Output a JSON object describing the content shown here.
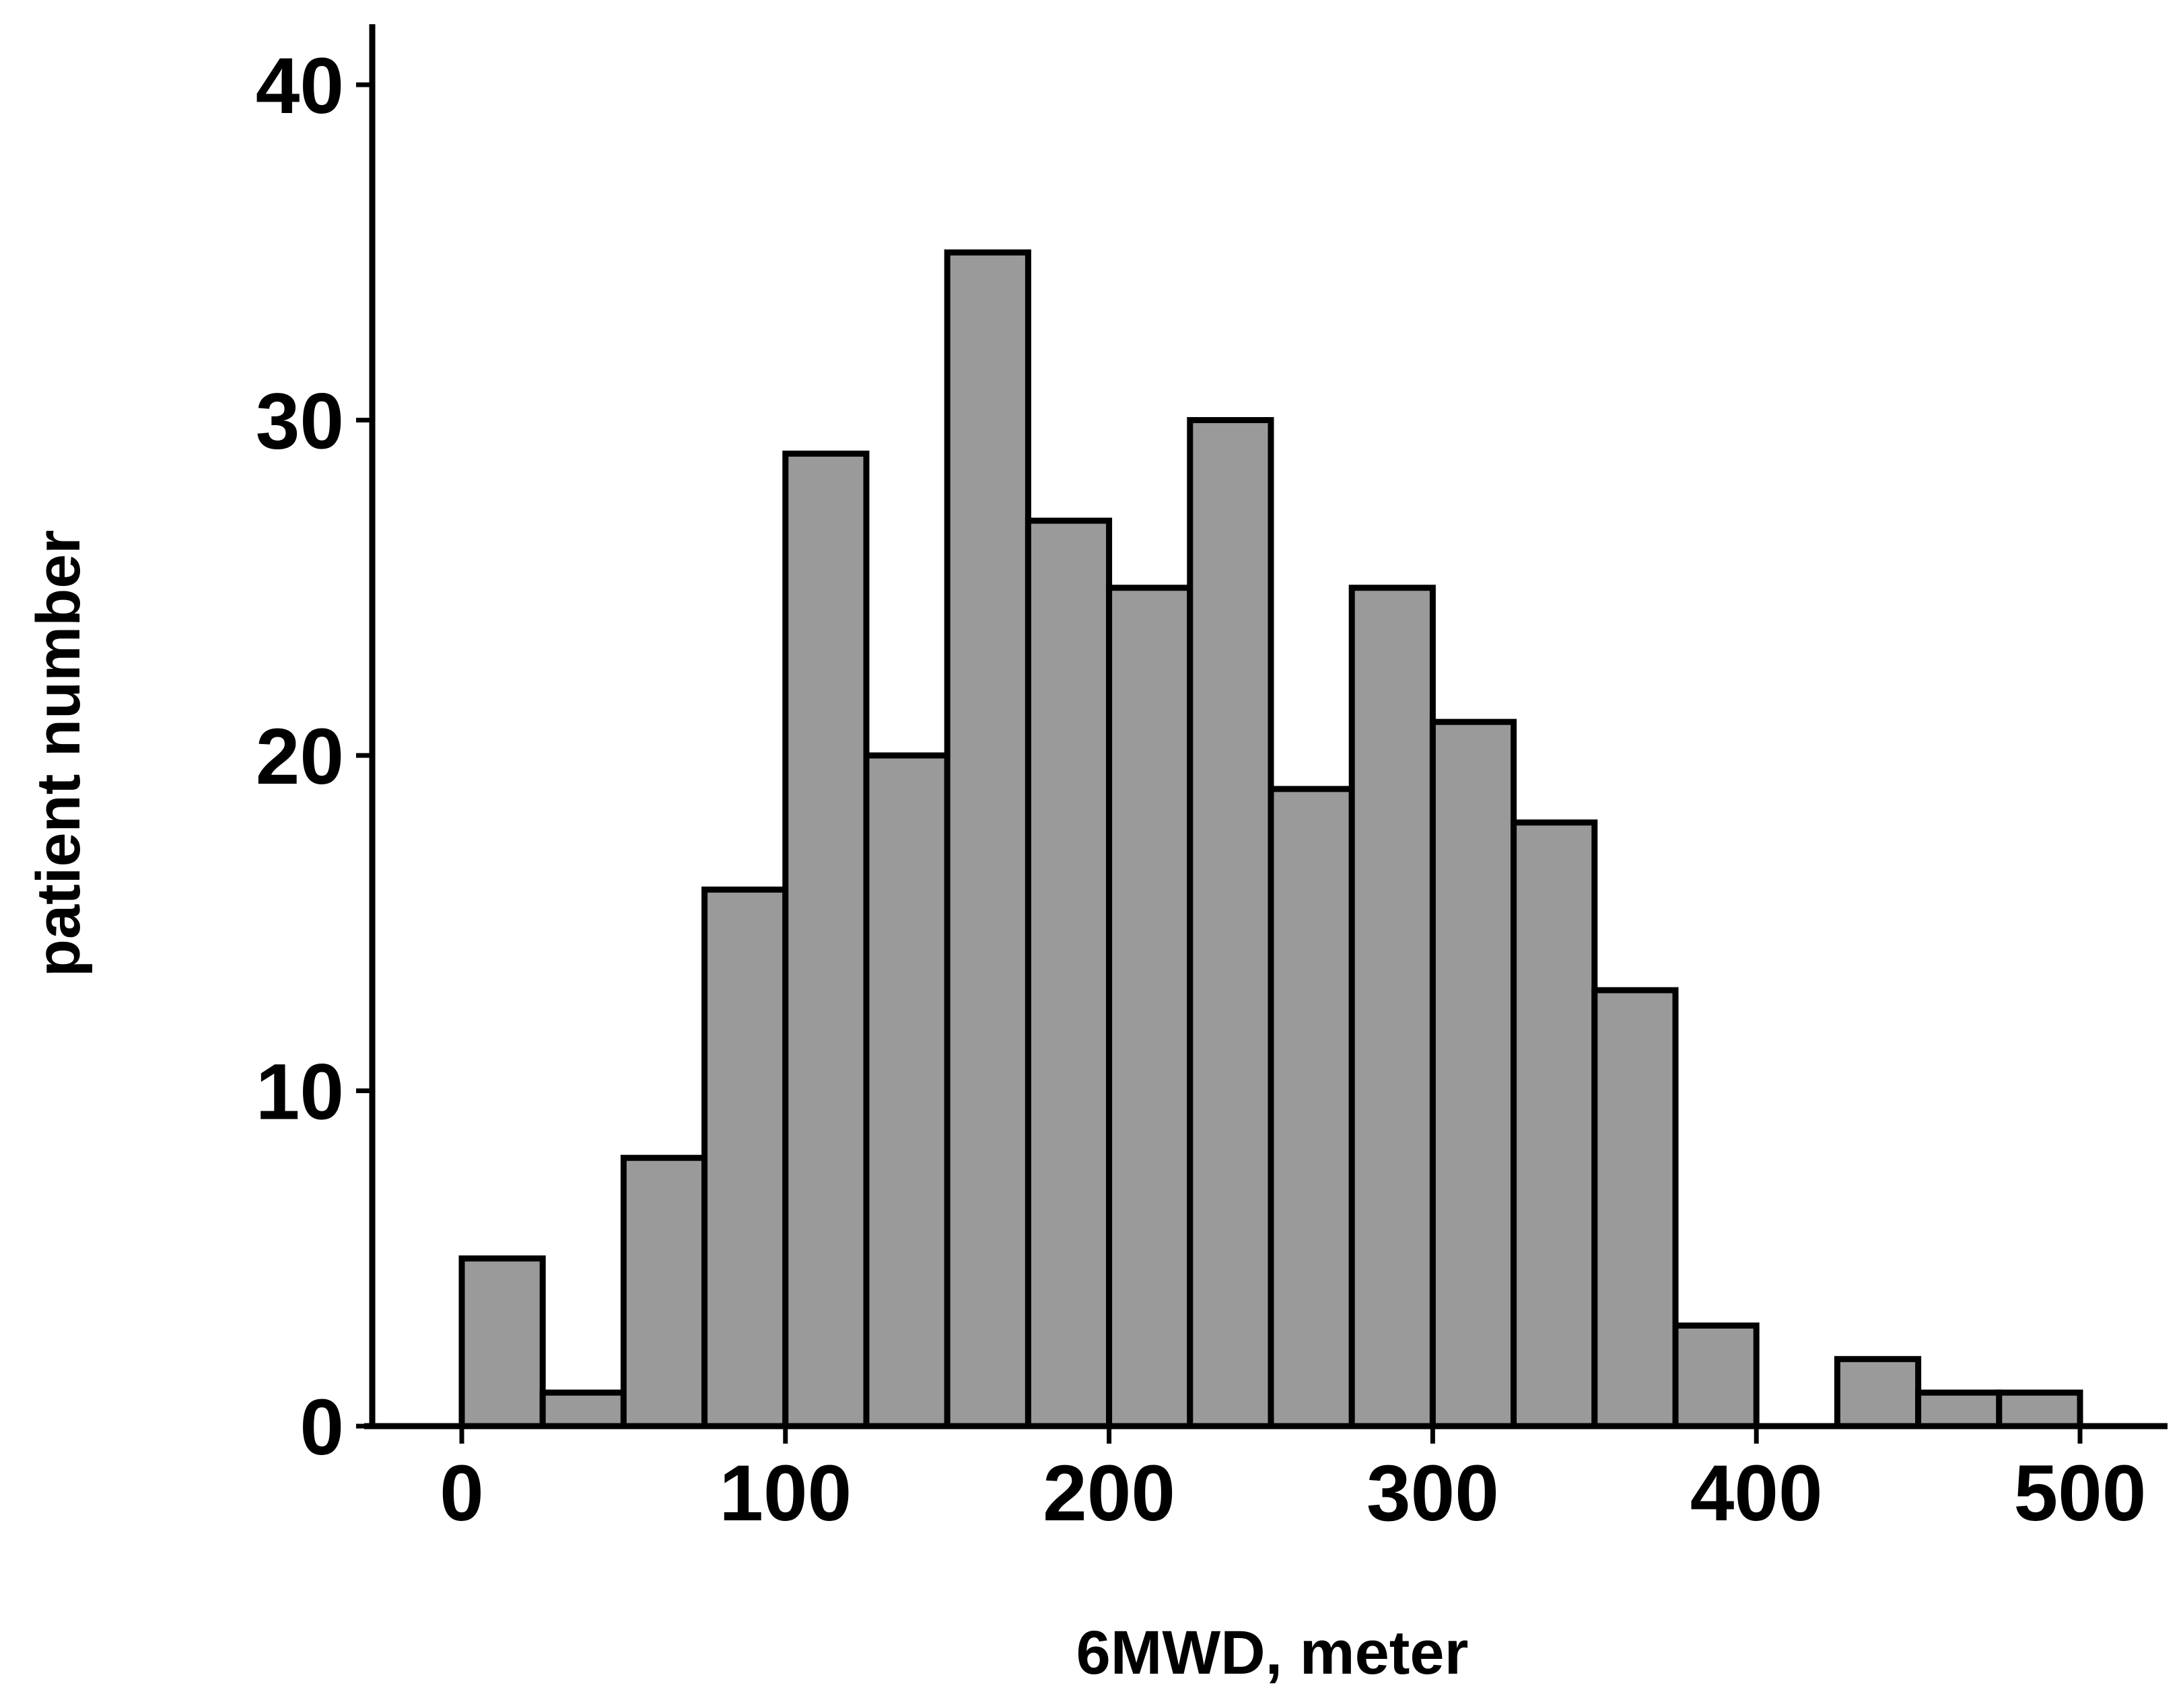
{
  "chart_data": {
    "type": "bar",
    "title": "",
    "xlabel": "6MWD, meter",
    "ylabel": "patient number",
    "bin_width": 25,
    "bin_starts": [
      0,
      25,
      50,
      75,
      100,
      125,
      150,
      175,
      200,
      225,
      250,
      275,
      300,
      325,
      350,
      375,
      400,
      425,
      450,
      475
    ],
    "values": [
      5,
      1,
      8,
      16,
      29,
      20,
      35,
      27,
      25,
      30,
      19,
      25,
      21,
      18,
      13,
      3,
      0,
      2,
      1,
      1
    ],
    "xlim": [
      -30,
      527
    ],
    "ylim": [
      0,
      42
    ],
    "x_ticks": [
      0,
      100,
      200,
      300,
      400,
      500
    ],
    "y_ticks": [
      0,
      10,
      20,
      30,
      40
    ],
    "grid": false,
    "legend": "none",
    "colors": {
      "bar_fill": "#9a9a9a",
      "bar_edge": "#000000",
      "axis": "#000000"
    }
  }
}
